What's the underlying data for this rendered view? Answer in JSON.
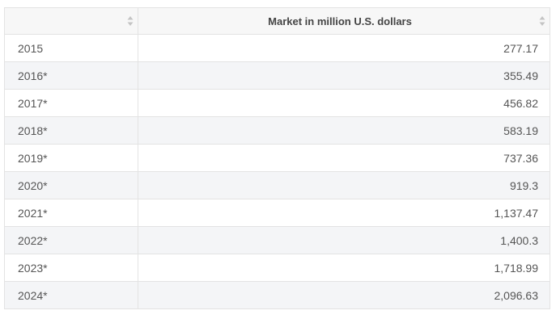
{
  "table": {
    "headers": [
      {
        "label": "",
        "sort_icon": "sort-icon"
      },
      {
        "label": "Market in million U.S. dollars",
        "sort_icon": "sort-icon"
      }
    ],
    "rows": [
      {
        "year": "2015",
        "value": "277.17"
      },
      {
        "year": "2016*",
        "value": "355.49"
      },
      {
        "year": "2017*",
        "value": "456.82"
      },
      {
        "year": "2018*",
        "value": "583.19"
      },
      {
        "year": "2019*",
        "value": "737.36"
      },
      {
        "year": "2020*",
        "value": "919.3"
      },
      {
        "year": "2021*",
        "value": "1,137.47"
      },
      {
        "year": "2022*",
        "value": "1,400.3"
      },
      {
        "year": "2023*",
        "value": "1,718.99"
      },
      {
        "year": "2024*",
        "value": "2,096.63"
      }
    ]
  },
  "colors": {
    "header_bg": "#f7f7f7",
    "stripe_bg": "#f4f5f7",
    "border": "#e3e3e3",
    "sort_icon": "#c4c4c4"
  }
}
